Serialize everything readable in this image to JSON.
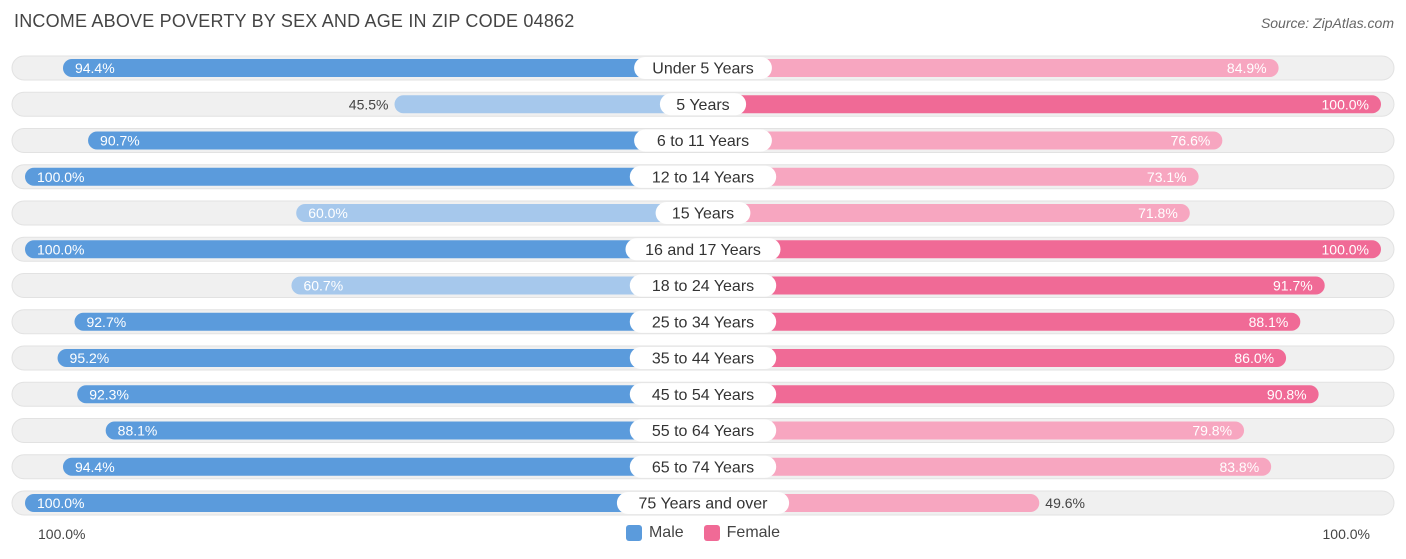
{
  "header": {
    "title": "INCOME ABOVE POVERTY BY SEX AND AGE IN ZIP CODE 04862",
    "source": "Source: ZipAtlas.com"
  },
  "colors": {
    "male_strong": "#5b9bdc",
    "male_light": "#a6c8ec",
    "female_strong": "#f06a96",
    "female_light": "#f7a6c0",
    "row_bg": "#f0f0f0",
    "row_border": "#e2e2e2"
  },
  "chart_data": {
    "type": "bar",
    "title": "INCOME ABOVE POVERTY BY SEX AND AGE IN ZIP CODE 04862",
    "categories": [
      "Under 5 Years",
      "5 Years",
      "6 to 11 Years",
      "12 to 14 Years",
      "15 Years",
      "16 and 17 Years",
      "18 to 24 Years",
      "25 to 34 Years",
      "35 to 44 Years",
      "45 to 54 Years",
      "55 to 64 Years",
      "65 to 74 Years",
      "75 Years and over"
    ],
    "series": [
      {
        "name": "Male",
        "values": [
          94.4,
          45.5,
          90.7,
          100.0,
          60.0,
          100.0,
          60.7,
          92.7,
          95.2,
          92.3,
          88.1,
          94.4,
          100.0
        ],
        "labels": [
          "94.4%",
          "45.5%",
          "90.7%",
          "100.0%",
          "60.0%",
          "100.0%",
          "60.7%",
          "92.7%",
          "95.2%",
          "92.3%",
          "88.1%",
          "94.4%",
          "100.0%"
        ]
      },
      {
        "name": "Female",
        "values": [
          84.9,
          100.0,
          76.6,
          73.1,
          71.8,
          100.0,
          91.7,
          88.1,
          86.0,
          90.8,
          79.8,
          83.8,
          49.6
        ],
        "labels": [
          "84.9%",
          "100.0%",
          "76.6%",
          "73.1%",
          "71.8%",
          "100.0%",
          "91.7%",
          "88.1%",
          "86.0%",
          "90.8%",
          "79.8%",
          "83.8%",
          "49.6%"
        ]
      }
    ],
    "xlim": [
      0,
      100
    ],
    "axis_left_label": "100.0%",
    "axis_right_label": "100.0%",
    "legend": [
      "Male",
      "Female"
    ],
    "legend_position": "bottom-center"
  }
}
